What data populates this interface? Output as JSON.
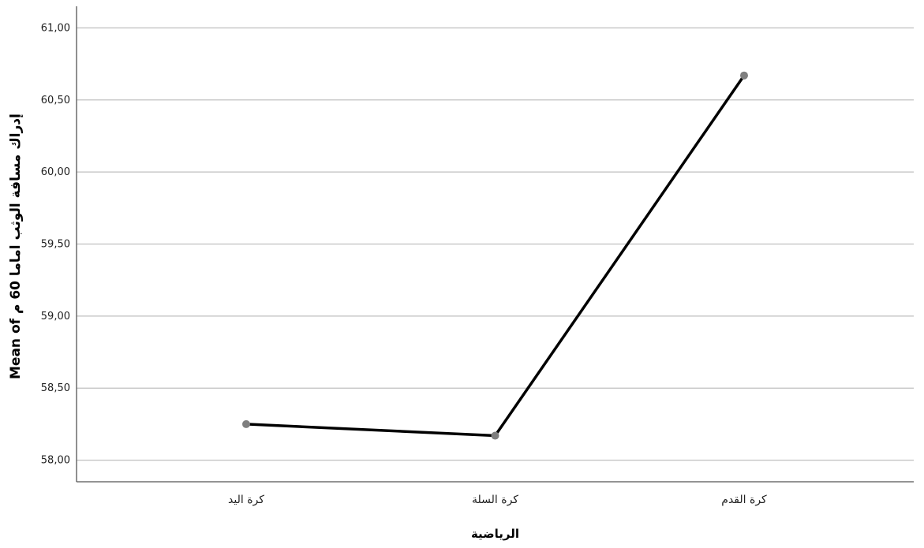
{
  "chart_data": {
    "type": "line",
    "title": "",
    "xlabel": "الرياضية",
    "ylabel": "Mean of إدراك مسافة الوثب اماما 60 م",
    "categories": [
      "كرة اليد",
      "كرة السلة",
      "كرة القدم"
    ],
    "values": [
      58.25,
      58.17,
      60.67
    ],
    "ylim": [
      57.85,
      61.15
    ],
    "yticks": [
      "58,00",
      "58,50",
      "59,00",
      "59,50",
      "60,00",
      "60,50",
      "61,00"
    ],
    "ytick_values": [
      58.0,
      58.5,
      59.0,
      59.5,
      60.0,
      60.5,
      61.0
    ],
    "grid": true,
    "colors": {
      "line": "#000000",
      "marker": "#7f7f7f",
      "grid": "#bfbfbf",
      "axis": "#555555"
    }
  }
}
